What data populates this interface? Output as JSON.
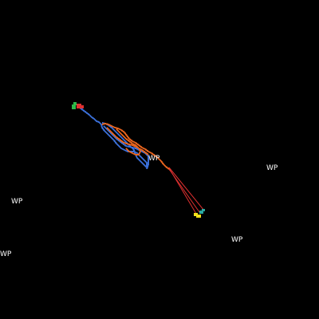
{
  "map": {
    "background_color": "#000000",
    "track_colors": {
      "blue_track": "#3a6fd8",
      "orange_track": "#e8641e",
      "red_link": "#e03030",
      "start_green": "#2db84a",
      "start_red": "#e03030",
      "end_yellow": "#f2e21a",
      "end_teal": "#2aa8a0"
    },
    "waypoints": [
      {
        "label": "WP"
      },
      {
        "label": "WP"
      },
      {
        "label": "WP"
      },
      {
        "label": "WP"
      },
      {
        "label": "WP"
      }
    ]
  }
}
